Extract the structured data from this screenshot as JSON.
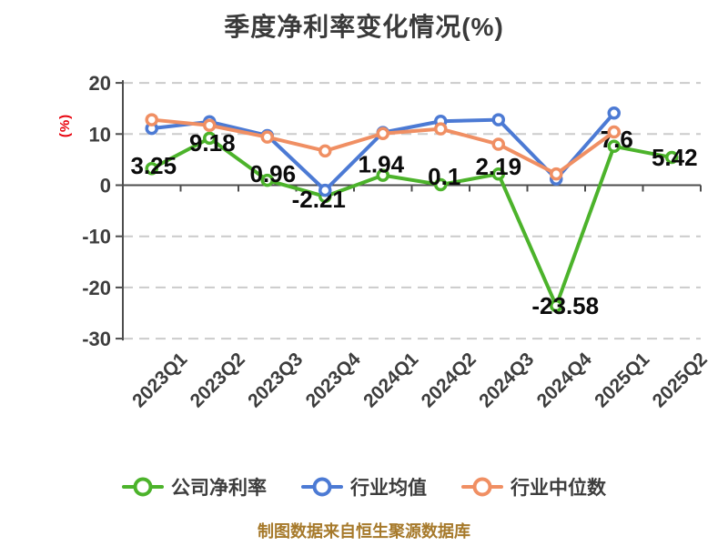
{
  "chart": {
    "title": "季度净利率变化情况(%)",
    "y_axis_label": "(%)",
    "footer": "制图数据来自恒生聚源数据库"
  },
  "chart_data": {
    "type": "line",
    "title": "季度净利率变化情况(%)",
    "xlabel": "",
    "ylabel": "(%)",
    "categories": [
      "2023Q1",
      "2023Q2",
      "2023Q3",
      "2023Q4",
      "2024Q1",
      "2024Q2",
      "2024Q3",
      "2024Q4",
      "2025Q1",
      "2025Q2"
    ],
    "series": [
      {
        "key": "company-net-margin",
        "name": "公司净利率",
        "color": "#4cb32b",
        "values": [
          3.25,
          9.18,
          0.96,
          -2.21,
          1.94,
          0.1,
          2.19,
          -23.58,
          7.6,
          5.42
        ],
        "point_labels": [
          "3.25",
          "9.18",
          "0.96",
          "-2.21",
          "1.94",
          "0.1",
          "2.19",
          "-23.58",
          "7.6",
          "5.42"
        ]
      },
      {
        "key": "industry-mean",
        "name": "行业均值",
        "color": "#4c7ad4",
        "values": [
          11.1,
          12.4,
          9.7,
          -1.0,
          10.3,
          12.5,
          12.8,
          1.2,
          14.1,
          null
        ],
        "point_labels": []
      },
      {
        "key": "industry-median",
        "name": "行业中位数",
        "color": "#f08f63",
        "values": [
          12.8,
          11.7,
          9.4,
          6.7,
          10.1,
          11.0,
          8.0,
          2.2,
          10.4,
          null
        ],
        "point_labels": []
      }
    ],
    "ylim": [
      -30,
      20
    ],
    "yticks": [
      20,
      10,
      0,
      -10,
      -20,
      -30
    ],
    "grid": "horizontal-dashed",
    "legend_position": "bottom",
    "marker": "donut-circle"
  },
  "colors": {
    "title_text": "#3a3a3a",
    "axis": "#4d4d4d",
    "tick_text": "#3d3d3d",
    "gridline": "#cbcbcb",
    "data_label_text": "#0b0b0b",
    "y_axis_label_text": "#e8000b",
    "footer_text": "#a6792a",
    "background": "#ffffff"
  }
}
